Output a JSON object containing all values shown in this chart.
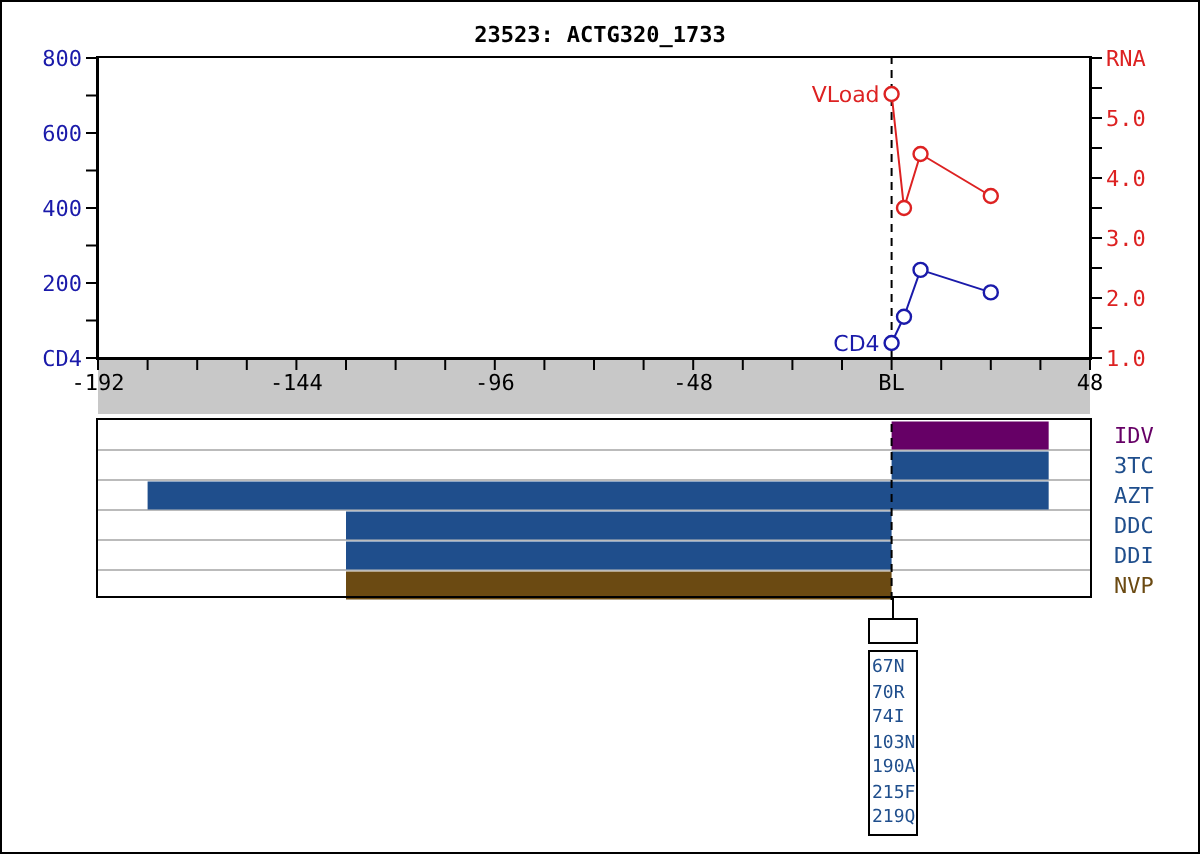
{
  "chart_data": [
    {
      "type": "line",
      "title": "23523: ACTG320_1733",
      "x": [
        0,
        3,
        7,
        24
      ],
      "xlim": [
        -192,
        48
      ],
      "xticks": [
        -192,
        {
          "value": -180,
          "label": null
        },
        {
          "value": -168,
          "label": null
        },
        {
          "value": -156,
          "label": null
        },
        -144,
        {
          "value": -132,
          "label": null
        },
        {
          "value": -120,
          "label": null
        },
        {
          "value": -108,
          "label": null
        },
        -96,
        {
          "value": -84,
          "label": null
        },
        {
          "value": -72,
          "label": null
        },
        {
          "value": -60,
          "label": null
        },
        -48,
        {
          "value": -36,
          "label": null
        },
        {
          "value": -24,
          "label": null
        },
        {
          "value": -12,
          "label": null
        },
        {
          "value": 0,
          "label": "BL"
        },
        {
          "value": 12,
          "label": null
        },
        {
          "value": 24,
          "label": null
        },
        {
          "value": 36,
          "label": null
        },
        48
      ],
      "ylim": [
        0,
        800
      ],
      "yticks": [
        {
          "value": 0,
          "label": "CD4"
        },
        {
          "value": 100,
          "label": null
        },
        200,
        {
          "value": 300,
          "label": null
        },
        400,
        {
          "value": 500,
          "label": null
        },
        600,
        {
          "value": 700,
          "label": null
        },
        800
      ],
      "y2lim": [
        1,
        6
      ],
      "y2ticks": [
        {
          "value": 1,
          "label": "1.0"
        },
        {
          "value": 1.5,
          "label": null
        },
        {
          "value": 2,
          "label": "2.0"
        },
        {
          "value": 2.5,
          "label": null
        },
        {
          "value": 3,
          "label": "3.0"
        },
        {
          "value": 3.5,
          "label": null
        },
        {
          "value": 4,
          "label": "4.0"
        },
        {
          "value": 4.5,
          "label": null
        },
        {
          "value": 5,
          "label": "5.0"
        },
        {
          "value": 5.5,
          "label": null
        },
        {
          "value": 6,
          "label": "RNA"
        }
      ],
      "marker": "circle",
      "series": [
        {
          "name": "CD4",
          "color": "#1a1aaa",
          "values": [
            40,
            110,
            235,
            175
          ]
        },
        {
          "name": "VLoad",
          "color": "#dd2222",
          "axis": "y2",
          "values": [
            5.4,
            3.5,
            4.4,
            3.7
          ]
        }
      ],
      "ref_lines": [
        {
          "axis": "x",
          "value": 0,
          "line_style": "dashed",
          "color": "#000000"
        }
      ]
    },
    {
      "type": "bar",
      "orientation": "horizontal",
      "categories": [
        "IDV",
        "3TC",
        "AZT",
        "DDC",
        "DDI",
        "NVP"
      ],
      "base": [
        0,
        0,
        -180,
        -132,
        -132,
        -132
      ],
      "values": [
        38,
        38,
        218,
        132,
        132,
        132
      ],
      "colors": [
        "#660066",
        "#1f4e8c",
        "#1f4e8c",
        "#1f4e8c",
        "#1f4e8c",
        "#6b4a12"
      ],
      "xlim": [
        -192,
        48
      ],
      "tick_labels": "y",
      "grid": "y",
      "ref_lines": [
        {
          "axis": "x",
          "value": 0,
          "line_style": "dashed",
          "color": "#000000"
        }
      ],
      "annotations": [
        "67N",
        "70R",
        "74I",
        "103N",
        "190A",
        "215F",
        "219Q"
      ]
    }
  ]
}
